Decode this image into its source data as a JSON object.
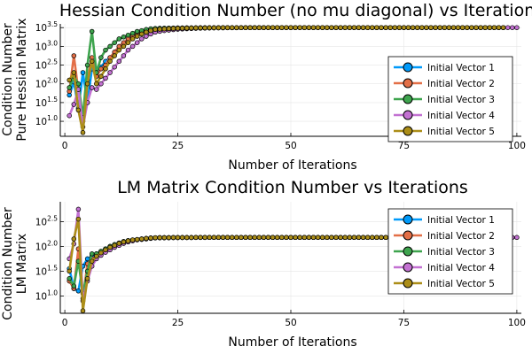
{
  "figure": {
    "background": "#ffffff",
    "series_colors": [
      "#009AFA",
      "#E36F47",
      "#3EA44E",
      "#C371D2",
      "#AC8E18"
    ]
  },
  "chart_data": [
    {
      "type": "line",
      "markers": "circle",
      "title": "Hessian Condition Number (no mu diagonal) vs Iterations",
      "xlabel": "Number of Iterations",
      "ylabel_lines": [
        "Condition Number",
        "Pure Hessian Matrix"
      ],
      "xlim": [
        -1,
        101
      ],
      "ylim_log10": [
        0.6,
        3.6
      ],
      "yscale": "log10",
      "xticks": [
        "0",
        "25",
        "50",
        "75",
        "100"
      ],
      "yticks": [
        {
          "exp": "1.0",
          "log10": 1.0
        },
        {
          "exp": "1.5",
          "log10": 1.5
        },
        {
          "exp": "2.0",
          "log10": 2.0
        },
        {
          "exp": "2.5",
          "log10": 2.5
        },
        {
          "exp": "3.0",
          "log10": 3.0
        },
        {
          "exp": "3.5",
          "log10": 3.5
        }
      ],
      "tick_base": "10",
      "grid": true,
      "legend_position": "right",
      "series": [
        {
          "name": "Initial Vector 1",
          "color": "#009AFA",
          "last_x": 96,
          "log10_head": [
            1.7,
            2.05,
            1.35,
            2.3,
            1.5,
            2.4,
            2.3,
            2.45,
            2.6,
            2.7,
            2.8,
            2.95,
            3.05,
            3.15,
            3.22,
            3.3,
            3.35,
            3.4,
            3.43,
            3.45
          ],
          "plateau": 3.5,
          "decay": 0.2
        },
        {
          "name": "Initial Vector 2",
          "color": "#E36F47",
          "last_x": 96,
          "log10_head": [
            1.8,
            2.75,
            1.8,
            1.0,
            2.1,
            2.7,
            2.2,
            2.4,
            2.5,
            2.7,
            2.85,
            3.0,
            3.1,
            3.2,
            3.27,
            3.33,
            3.38,
            3.42,
            3.45,
            3.47
          ],
          "plateau": 3.5,
          "decay": 0.2
        },
        {
          "name": "Initial Vector 3",
          "color": "#3EA44E",
          "last_x": 96,
          "log10_head": [
            1.9,
            2.2,
            2.0,
            1.1,
            2.5,
            3.4,
            2.3,
            2.7,
            2.9,
            3.0,
            3.1,
            3.2,
            3.25,
            3.3,
            3.35,
            3.4,
            3.42,
            3.45,
            3.47,
            3.48
          ],
          "plateau": 3.5,
          "decay": 0.2
        },
        {
          "name": "Initial Vector 4",
          "color": "#C371D2",
          "last_x": 99,
          "log10_head": [
            1.15,
            1.45,
            1.85,
            0.85,
            1.5,
            1.9,
            1.85,
            2.0,
            2.15,
            2.3,
            2.45,
            2.6,
            2.75,
            2.9,
            3.0,
            3.1,
            3.2,
            3.27,
            3.33,
            3.38
          ],
          "plateau": 3.5,
          "decay": 0.2
        },
        {
          "name": "Initial Vector 5",
          "color": "#AC8E18",
          "last_x": 96,
          "log10_head": [
            2.1,
            2.3,
            1.3,
            0.7,
            2.0,
            2.6,
            2.0,
            2.2,
            2.4,
            2.6,
            2.75,
            2.9,
            3.0,
            3.1,
            3.2,
            3.27,
            3.33,
            3.38,
            3.42,
            3.45
          ],
          "plateau": 3.5,
          "decay": 0.2
        }
      ]
    },
    {
      "type": "line",
      "markers": "circle",
      "title": "LM Matrix Condition Number vs Iterations",
      "xlabel": "Number of Iterations",
      "ylabel_lines": [
        "Condition Number",
        "LM Matrix"
      ],
      "xlim": [
        -1,
        101
      ],
      "ylim_log10": [
        0.65,
        2.9
      ],
      "yscale": "log10",
      "xticks": [
        "0",
        "25",
        "50",
        "75",
        "100"
      ],
      "yticks": [
        {
          "exp": "1.0",
          "log10": 1.0
        },
        {
          "exp": "1.5",
          "log10": 1.5
        },
        {
          "exp": "2.0",
          "log10": 2.0
        },
        {
          "exp": "2.5",
          "log10": 2.5
        }
      ],
      "tick_base": "10",
      "grid": true,
      "legend_position": "right",
      "series": [
        {
          "name": "Initial Vector 1",
          "color": "#009AFA",
          "last_x": 96,
          "log10_head": [
            1.55,
            1.15,
            1.1,
            1.6,
            1.75,
            1.8,
            1.85,
            1.9,
            1.95,
            2.0,
            2.03,
            2.06,
            2.09,
            2.11,
            2.13,
            2.14,
            2.15,
            2.16,
            2.17,
            2.175
          ],
          "plateau": 2.18,
          "decay": 0.25
        },
        {
          "name": "Initial Vector 2",
          "color": "#E36F47",
          "last_x": 96,
          "log10_head": [
            1.3,
            1.15,
            1.95,
            0.95,
            1.65,
            1.75,
            1.8,
            1.88,
            1.94,
            1.99,
            2.03,
            2.06,
            2.09,
            2.11,
            2.13,
            2.14,
            2.15,
            2.16,
            2.17,
            2.175
          ],
          "plateau": 2.18,
          "decay": 0.25
        },
        {
          "name": "Initial Vector 3",
          "color": "#3EA44E",
          "last_x": 96,
          "log10_head": [
            1.35,
            1.2,
            1.7,
            1.05,
            1.5,
            1.85,
            1.85,
            1.9,
            1.95,
            2.0,
            2.04,
            2.07,
            2.1,
            2.12,
            2.13,
            2.14,
            2.15,
            2.16,
            2.17,
            2.175
          ],
          "plateau": 2.18,
          "decay": 0.25
        },
        {
          "name": "Initial Vector 4",
          "color": "#C371D2",
          "last_x": 99,
          "log10_head": [
            1.75,
            2.05,
            2.75,
            0.9,
            1.3,
            1.6,
            1.75,
            1.82,
            1.88,
            1.93,
            1.98,
            2.02,
            2.06,
            2.09,
            2.11,
            2.13,
            2.14,
            2.15,
            2.16,
            2.17
          ],
          "plateau": 2.18,
          "decay": 0.25
        },
        {
          "name": "Initial Vector 5",
          "color": "#AC8E18",
          "last_x": 96,
          "log10_head": [
            1.5,
            2.15,
            2.55,
            0.7,
            1.35,
            1.7,
            1.8,
            1.87,
            1.93,
            1.98,
            2.02,
            2.06,
            2.09,
            2.11,
            2.13,
            2.14,
            2.15,
            2.16,
            2.17,
            2.175
          ],
          "plateau": 2.18,
          "decay": 0.25
        }
      ]
    }
  ]
}
